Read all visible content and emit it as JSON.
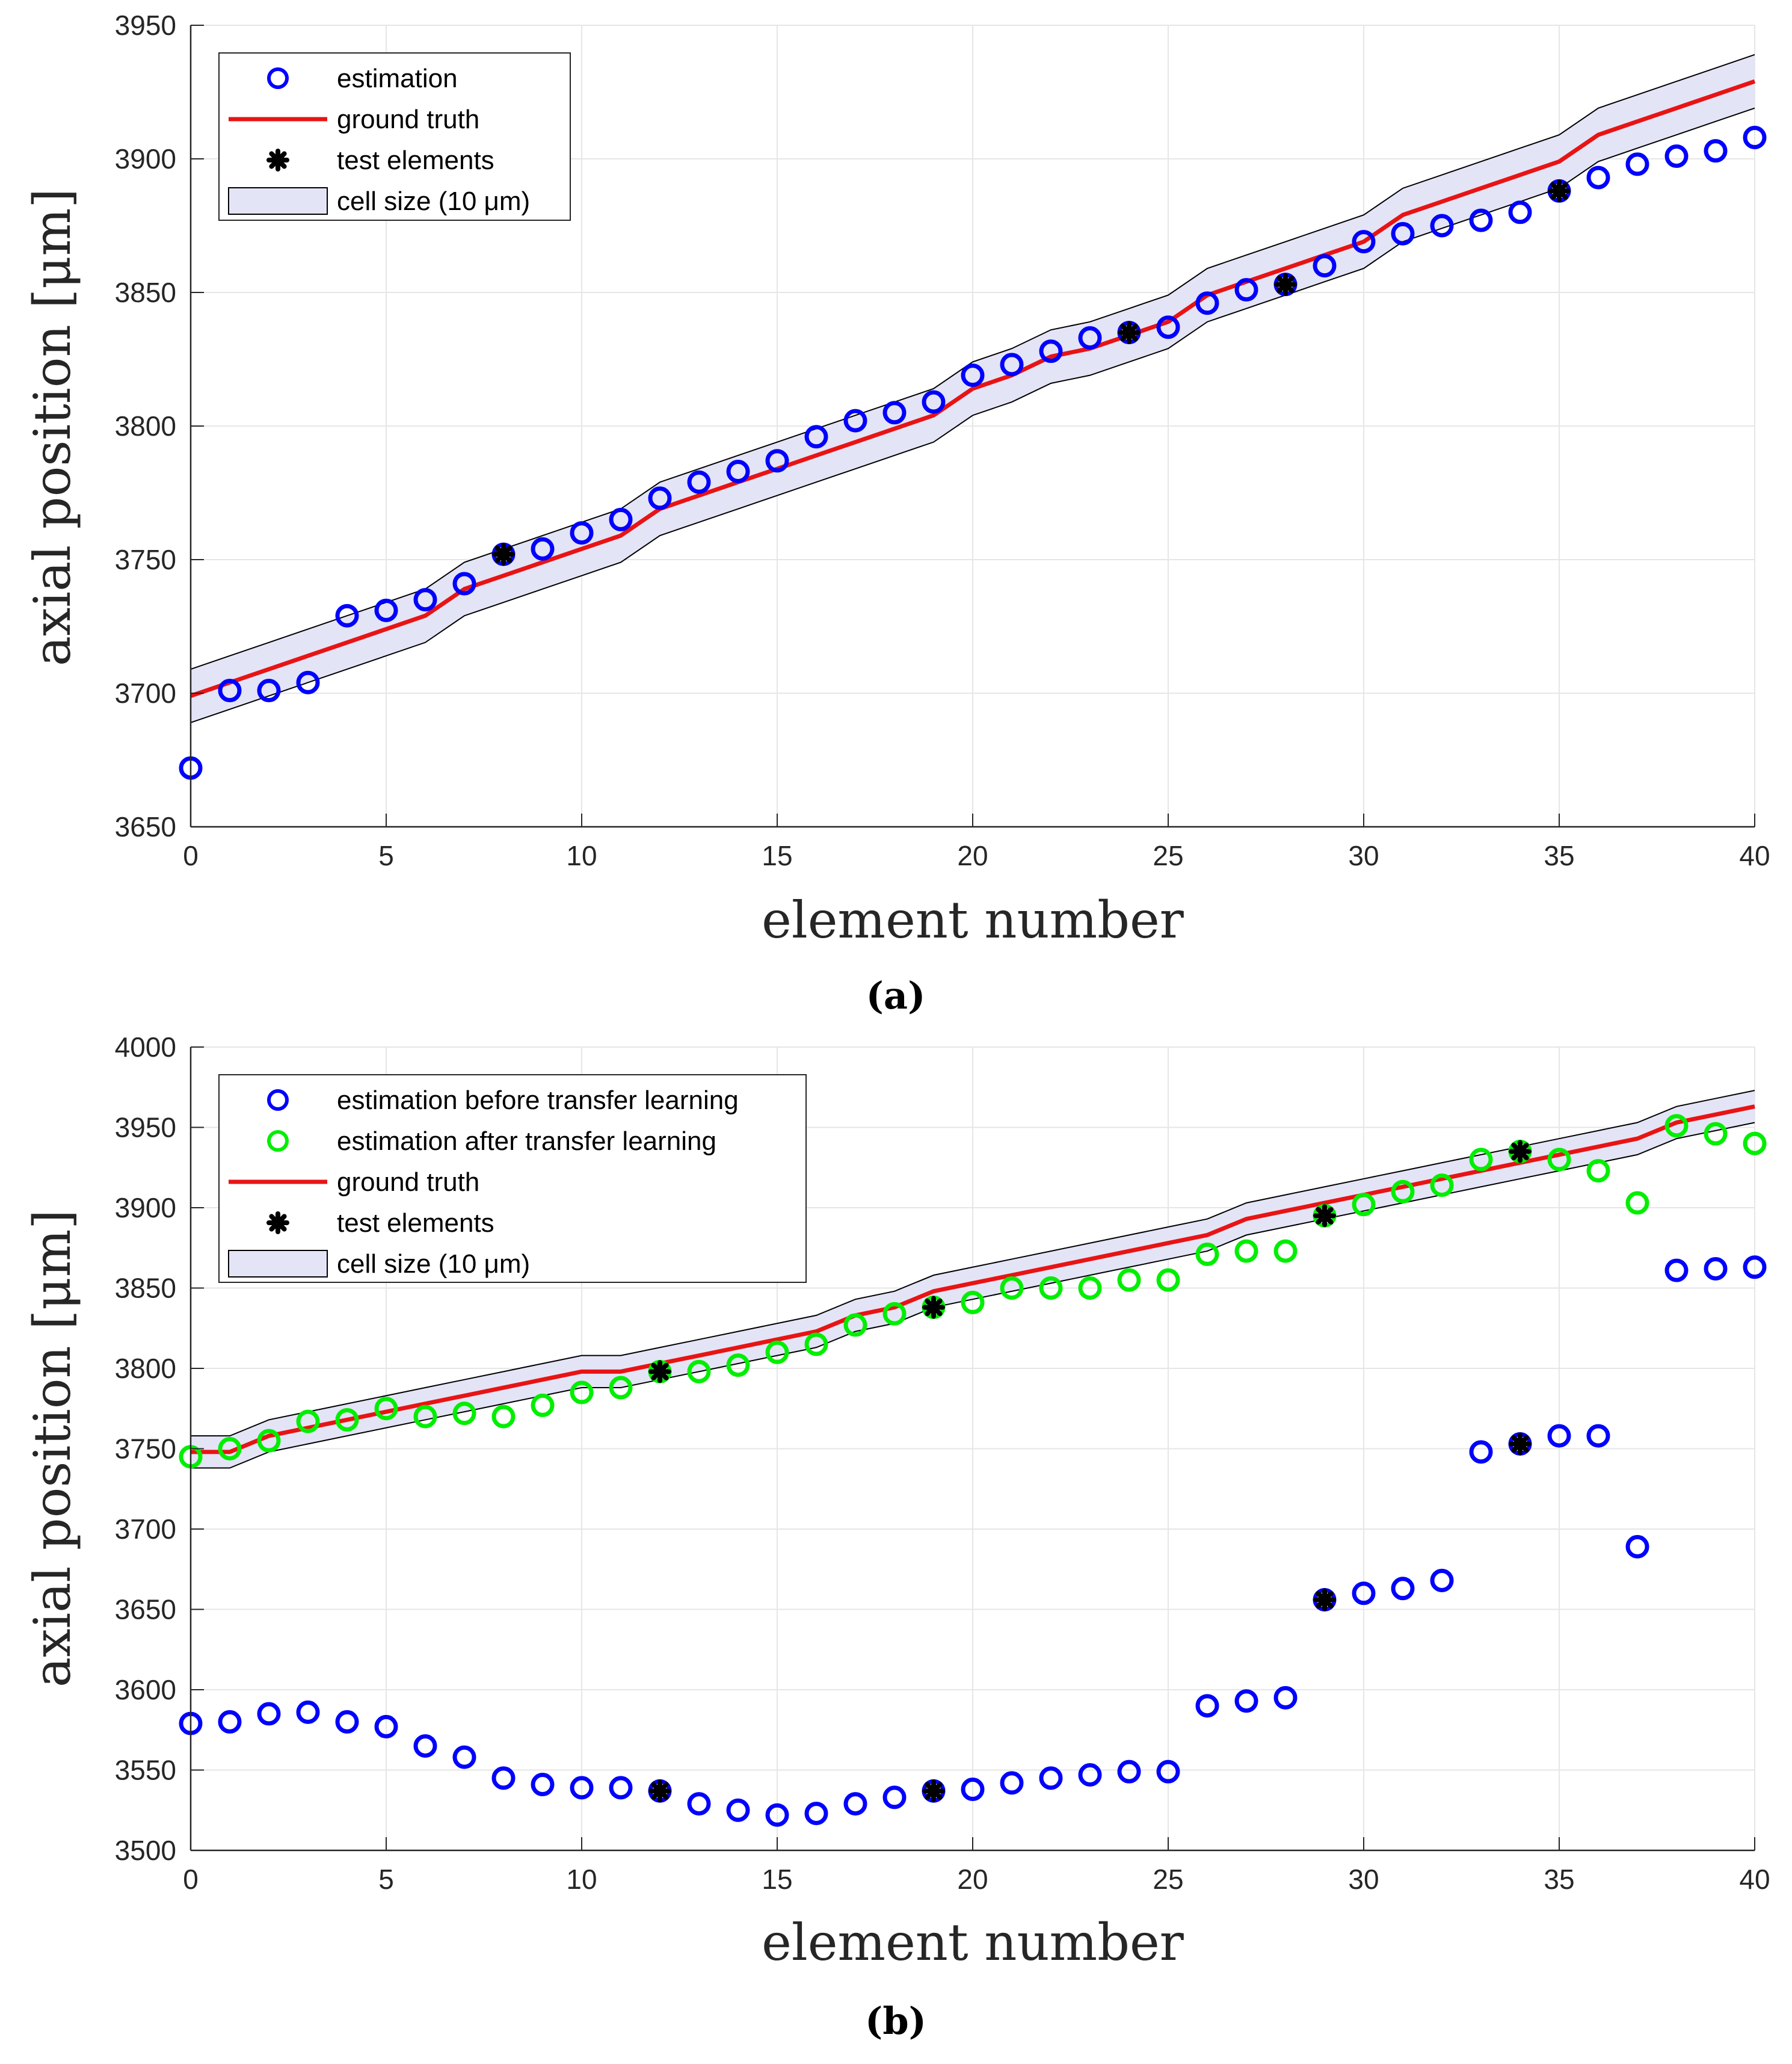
{
  "colors": {
    "estimation": "#0000ff",
    "after_transfer": "#00ee00",
    "ground_truth": "#e81414",
    "test_elements": "#000000",
    "cell_fill": "#e4e4f7",
    "grid": "#e6e6e6",
    "axis": "#262626"
  },
  "chart_data": [
    {
      "id": "a",
      "type": "scatter",
      "caption": "(a)",
      "xlabel": "element number",
      "ylabel": "axial position [μm]",
      "xlim": [
        0,
        40
      ],
      "ylim": [
        3650,
        3950
      ],
      "xticks": [
        "0",
        "5",
        "10",
        "15",
        "20",
        "25",
        "30",
        "35",
        "40"
      ],
      "yticks": [
        "3650",
        "3700",
        "3750",
        "3800",
        "3850",
        "3900",
        "3950"
      ],
      "grid": true,
      "legend_position": "top-left",
      "legend": {
        "estimation": "estimation",
        "ground_truth": "ground truth",
        "test_elements": "test elements",
        "cell_size": "cell size (10 μm)"
      },
      "cell_half_width": 10,
      "ground_truth": {
        "x": [
          0,
          1,
          2,
          3,
          4,
          5,
          6,
          7,
          8,
          9,
          10,
          11,
          12,
          13,
          14,
          15,
          16,
          17,
          18,
          19,
          20,
          21,
          22,
          23,
          24,
          25,
          26,
          27,
          28,
          29,
          30,
          31,
          32,
          33,
          34,
          35,
          36,
          37,
          38,
          39,
          40
        ],
        "y": [
          3699,
          3704,
          3709,
          3714,
          3719,
          3724,
          3729,
          3739,
          3744,
          3749,
          3754,
          3759,
          3769,
          3774,
          3779,
          3784,
          3789,
          3794,
          3799,
          3804,
          3814,
          3819,
          3826,
          3829,
          3834,
          3839,
          3849,
          3854,
          3859,
          3864,
          3869,
          3879,
          3884,
          3889,
          3894,
          3899,
          3909,
          3914,
          3919,
          3924,
          3929
        ]
      },
      "series": [
        {
          "name": "estimation",
          "x": [
            0,
            1,
            2,
            3,
            4,
            5,
            6,
            7,
            8,
            9,
            10,
            11,
            12,
            13,
            14,
            15,
            16,
            17,
            18,
            19,
            20,
            21,
            22,
            23,
            24,
            25,
            26,
            27,
            28,
            29,
            30,
            31,
            32,
            33,
            34,
            35,
            36,
            37,
            38,
            39,
            40
          ],
          "y": [
            3672,
            3701,
            3701,
            3704,
            3729,
            3731,
            3735,
            3741,
            3752,
            3754,
            3760,
            3765,
            3773,
            3779,
            3783,
            3787,
            3796,
            3802,
            3805,
            3809,
            3819,
            3823,
            3828,
            3833,
            3835,
            3837,
            3846,
            3851,
            3853,
            3860,
            3869,
            3872,
            3875,
            3877,
            3880,
            3888,
            3893,
            3898,
            3901,
            3903,
            3908
          ]
        }
      ],
      "test_elements": {
        "x": [
          8,
          24,
          28,
          35
        ],
        "y": [
          3752,
          3835,
          3853,
          3888
        ]
      }
    },
    {
      "id": "b",
      "type": "scatter",
      "caption": "(b)",
      "xlabel": "element number",
      "ylabel": "axial position [μm]",
      "xlim": [
        0,
        40
      ],
      "ylim": [
        3500,
        4000
      ],
      "xticks": [
        "0",
        "5",
        "10",
        "15",
        "20",
        "25",
        "30",
        "35",
        "40"
      ],
      "yticks": [
        "3500",
        "3550",
        "3600",
        "3650",
        "3700",
        "3750",
        "3800",
        "3850",
        "3900",
        "3950",
        "4000"
      ],
      "grid": true,
      "legend_position": "top-left",
      "legend": {
        "before": "estimation before transfer learning",
        "after": "estimation after transfer learning",
        "ground_truth": "ground truth",
        "test_elements": "test elements",
        "cell_size": "cell size (10 μm)"
      },
      "cell_half_width": 10,
      "ground_truth": {
        "x": [
          0,
          1,
          2,
          3,
          4,
          5,
          6,
          7,
          8,
          9,
          10,
          11,
          12,
          13,
          14,
          15,
          16,
          17,
          18,
          19,
          20,
          21,
          22,
          23,
          24,
          25,
          26,
          27,
          28,
          29,
          30,
          31,
          32,
          33,
          34,
          35,
          36,
          37,
          38,
          39,
          40
        ],
        "y": [
          3748,
          3748,
          3758,
          3763,
          3768,
          3773,
          3778,
          3783,
          3788,
          3793,
          3798,
          3798,
          3803,
          3808,
          3813,
          3818,
          3823,
          3833,
          3838,
          3848,
          3853,
          3858,
          3863,
          3868,
          3873,
          3878,
          3883,
          3893,
          3898,
          3903,
          3908,
          3913,
          3918,
          3923,
          3928,
          3933,
          3938,
          3943,
          3953,
          3958,
          3963
        ]
      },
      "series": [
        {
          "name": "estimation before transfer learning",
          "x": [
            0,
            1,
            2,
            3,
            4,
            5,
            6,
            7,
            8,
            9,
            10,
            11,
            12,
            13,
            14,
            15,
            16,
            17,
            18,
            19,
            20,
            21,
            22,
            23,
            24,
            25,
            26,
            27,
            28,
            29,
            30,
            31,
            32,
            33,
            34,
            35,
            36,
            37,
            38,
            39,
            40
          ],
          "y": [
            3579,
            3580,
            3585,
            3586,
            3580,
            3577,
            3565,
            3558,
            3545,
            3541,
            3539,
            3539,
            3537,
            3529,
            3525,
            3522,
            3523,
            3529,
            3533,
            3537,
            3538,
            3542,
            3545,
            3547,
            3549,
            3549,
            3590,
            3593,
            3595,
            3656,
            3660,
            3663,
            3668,
            3748,
            3753,
            3758,
            3758,
            3689,
            3861,
            3862,
            3863
          ]
        },
        {
          "name": "estimation after transfer learning",
          "x": [
            0,
            1,
            2,
            3,
            4,
            5,
            6,
            7,
            8,
            9,
            10,
            11,
            12,
            13,
            14,
            15,
            16,
            17,
            18,
            19,
            20,
            21,
            22,
            23,
            24,
            25,
            26,
            27,
            28,
            29,
            30,
            31,
            32,
            33,
            34,
            35,
            36,
            37,
            38,
            39,
            40
          ],
          "y": [
            3745,
            3750,
            3755,
            3767,
            3768,
            3775,
            3770,
            3772,
            3770,
            3777,
            3785,
            3788,
            3798,
            3798,
            3802,
            3810,
            3815,
            3827,
            3834,
            3838,
            3841,
            3850,
            3850,
            3850,
            3855,
            3855,
            3871,
            3873,
            3873,
            3895,
            3902,
            3910,
            3914,
            3930,
            3935,
            3930,
            3923,
            3903,
            3951,
            3946,
            3940
          ]
        }
      ],
      "test_elements": {
        "x": [
          12,
          19,
          29,
          34,
          12,
          19,
          29,
          34
        ],
        "y": [
          3798,
          3838,
          3895,
          3935,
          3537,
          3537,
          3656,
          3753
        ]
      }
    }
  ]
}
